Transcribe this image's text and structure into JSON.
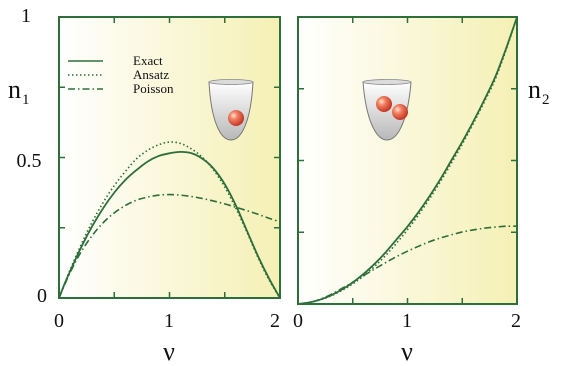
{
  "chart_data": [
    {
      "type": "line",
      "ylabel": "n",
      "ylabel_sub": "1",
      "xlabel": "ν",
      "xlim": [
        0,
        2
      ],
      "ylim": [
        0,
        1
      ],
      "x_ticks": [
        "0",
        "1",
        "2"
      ],
      "y_ticks": [
        "0",
        "0.5",
        "1"
      ],
      "legend": {
        "position": "top-left",
        "entries": [
          "Exact",
          "Ansatz",
          "Poisson"
        ]
      },
      "inset": "one-particle-in-trap",
      "colors": {
        "line": "#2e6e3a",
        "bg_left": "#ffffff",
        "bg_right": "#f5f0b4",
        "frame": "#2e6e3a",
        "particle": "#e0503a"
      },
      "series": [
        {
          "name": "Exact",
          "style": "solid",
          "x": [
            0,
            0.05,
            0.1,
            0.2,
            0.3,
            0.4,
            0.5,
            0.6,
            0.7,
            0.8,
            0.9,
            1.0,
            1.1,
            1.2,
            1.3,
            1.4,
            1.5,
            1.6,
            1.7,
            1.8,
            1.9,
            2.0
          ],
          "y": [
            0,
            0.05,
            0.095,
            0.18,
            0.255,
            0.32,
            0.375,
            0.42,
            0.455,
            0.485,
            0.505,
            0.515,
            0.52,
            0.515,
            0.495,
            0.46,
            0.405,
            0.33,
            0.24,
            0.15,
            0.07,
            0
          ]
        },
        {
          "name": "Ansatz",
          "style": "dotted",
          "x": [
            0,
            0.05,
            0.1,
            0.2,
            0.3,
            0.4,
            0.5,
            0.6,
            0.7,
            0.8,
            0.9,
            1.0,
            1.1,
            1.2,
            1.3,
            1.4,
            1.5,
            1.6,
            1.7,
            1.8,
            1.9,
            2.0
          ],
          "y": [
            0,
            0.05,
            0.1,
            0.19,
            0.27,
            0.34,
            0.4,
            0.45,
            0.495,
            0.525,
            0.545,
            0.555,
            0.55,
            0.53,
            0.5,
            0.455,
            0.395,
            0.32,
            0.235,
            0.145,
            0.065,
            0
          ]
        },
        {
          "name": "Poisson",
          "style": "dashdot",
          "x": [
            0,
            0.1,
            0.2,
            0.3,
            0.4,
            0.5,
            0.6,
            0.7,
            0.8,
            0.9,
            1.0,
            1.1,
            1.2,
            1.3,
            1.4,
            1.5,
            1.6,
            1.7,
            1.8,
            1.9,
            2.0
          ],
          "y": [
            0,
            0.09,
            0.164,
            0.222,
            0.268,
            0.303,
            0.329,
            0.348,
            0.359,
            0.366,
            0.368,
            0.366,
            0.361,
            0.354,
            0.345,
            0.335,
            0.323,
            0.311,
            0.298,
            0.284,
            0.271
          ]
        }
      ]
    },
    {
      "type": "line",
      "ylabel": "n",
      "ylabel_sub": "2",
      "xlabel": "ν",
      "xlim": [
        0,
        2
      ],
      "ylim": [
        0,
        1
      ],
      "x_ticks": [
        "0",
        "1",
        "2"
      ],
      "inset": "two-particles-in-trap",
      "colors": {
        "line": "#2e6e3a",
        "bg_left": "#ffffff",
        "bg_right": "#f5f0b4",
        "frame": "#2e6e3a",
        "particle": "#e0503a"
      },
      "series": [
        {
          "name": "Exact",
          "style": "solid",
          "x": [
            0,
            0.1,
            0.2,
            0.3,
            0.4,
            0.5,
            0.6,
            0.7,
            0.8,
            0.9,
            1.0,
            1.1,
            1.2,
            1.3,
            1.4,
            1.5,
            1.6,
            1.7,
            1.8,
            1.9,
            2.0
          ],
          "y": [
            0,
            0.005,
            0.015,
            0.03,
            0.05,
            0.075,
            0.105,
            0.14,
            0.18,
            0.225,
            0.27,
            0.32,
            0.375,
            0.435,
            0.5,
            0.565,
            0.635,
            0.71,
            0.79,
            0.89,
            1.0
          ]
        },
        {
          "name": "Ansatz",
          "style": "dotted",
          "x": [
            0,
            0.1,
            0.2,
            0.3,
            0.4,
            0.5,
            0.6,
            0.7,
            0.8,
            0.9,
            1.0,
            1.1,
            1.2,
            1.3,
            1.4,
            1.5,
            1.6,
            1.7,
            1.8,
            1.9,
            2.0
          ],
          "y": [
            0,
            0.005,
            0.014,
            0.028,
            0.047,
            0.07,
            0.098,
            0.131,
            0.169,
            0.212,
            0.259,
            0.31,
            0.366,
            0.426,
            0.49,
            0.557,
            0.628,
            0.703,
            0.782,
            0.885,
            1.0
          ]
        },
        {
          "name": "Poisson",
          "style": "dashdot",
          "x": [
            0,
            0.1,
            0.2,
            0.3,
            0.4,
            0.5,
            0.6,
            0.7,
            0.8,
            0.9,
            1.0,
            1.1,
            1.2,
            1.3,
            1.4,
            1.5,
            1.6,
            1.7,
            1.8,
            1.9,
            2.0
          ],
          "y": [
            0,
            0.005,
            0.016,
            0.033,
            0.054,
            0.076,
            0.099,
            0.122,
            0.144,
            0.165,
            0.184,
            0.201,
            0.217,
            0.23,
            0.241,
            0.251,
            0.258,
            0.264,
            0.268,
            0.271,
            0.271
          ]
        }
      ]
    }
  ]
}
